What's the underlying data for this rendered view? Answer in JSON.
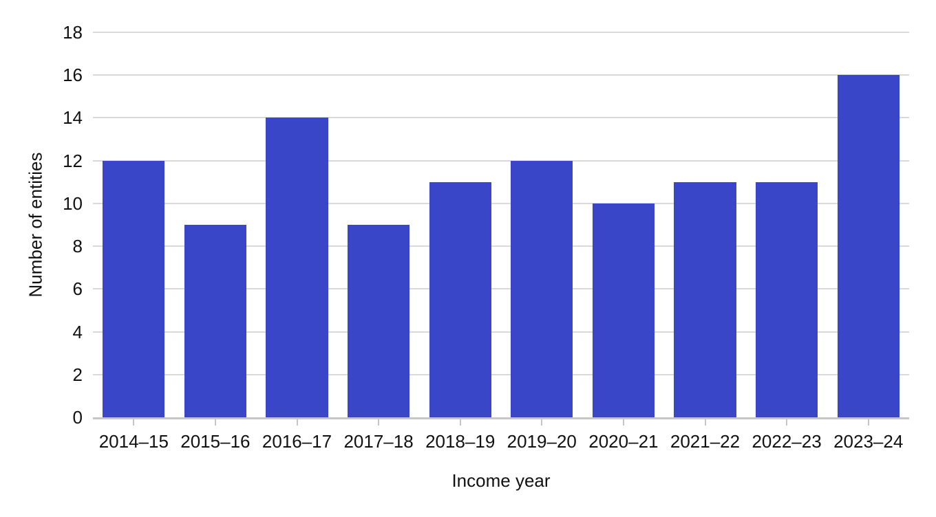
{
  "chart_data": {
    "type": "bar",
    "title": "",
    "categories": [
      "2014–15",
      "2015–16",
      "2016–17",
      "2017–18",
      "2018–19",
      "2019–20",
      "2020–21",
      "2021–22",
      "2022–23",
      "2023–24"
    ],
    "values": [
      12,
      9,
      14,
      9,
      11,
      12,
      10,
      11,
      11,
      16
    ],
    "xlabel": "Income year",
    "ylabel": "Number of entities",
    "ylim": [
      0,
      18
    ],
    "yticks": [
      0,
      2,
      4,
      6,
      8,
      10,
      12,
      14,
      16,
      18
    ],
    "grid": "horizontal",
    "legend": "none",
    "colors": {
      "bar": "#3a46c8",
      "gridline": "#d9d9d9",
      "axis_line": "#c6c6c6",
      "text": "#111111",
      "background": "#ffffff"
    }
  }
}
